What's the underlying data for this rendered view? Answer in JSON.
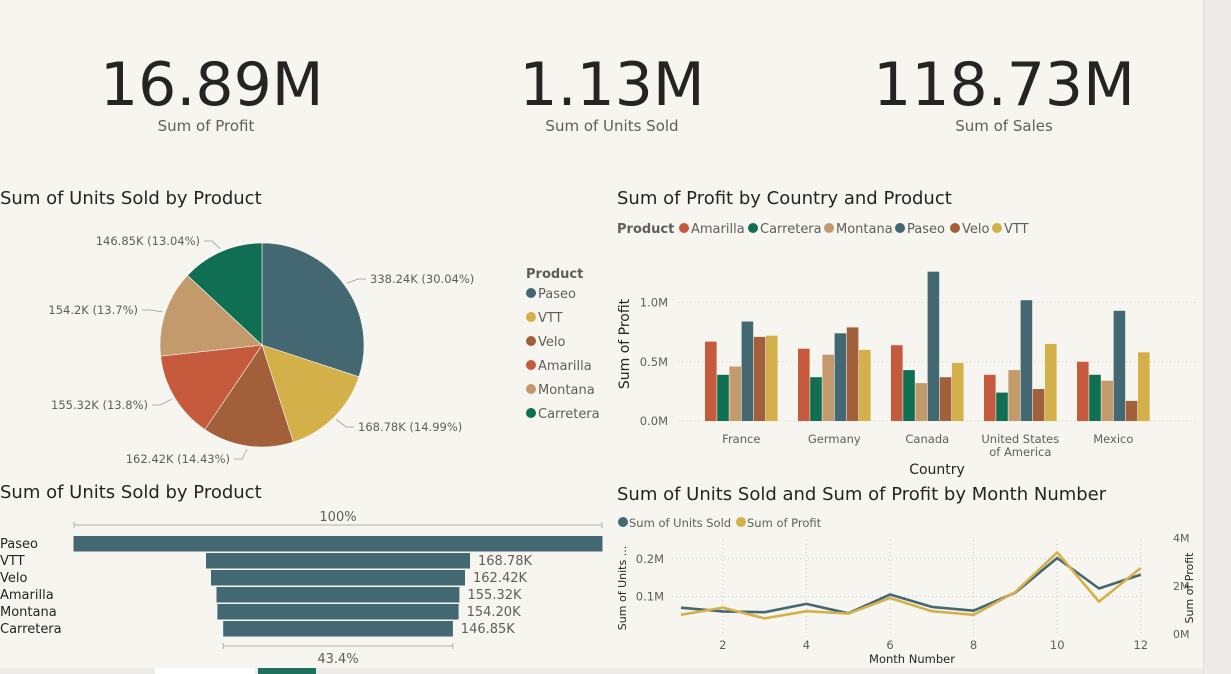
{
  "kpis": [
    {
      "value": "16.89M",
      "label": "Sum of Profit"
    },
    {
      "value": "1.13M",
      "label": "Sum of Units Sold"
    },
    {
      "value": "118.73M",
      "label": "Sum of  Sales"
    }
  ],
  "pie_title": "Sum of Units Sold by Product",
  "bar_title": "Sum of Profit by Country and Product",
  "funnel_title": "Sum of Units Sold by Product",
  "line_title": "Sum of Units Sold and Sum of Profit by Month Number",
  "colors": {
    "Paseo": "#436872",
    "VTT": "#d4b04a",
    "Velo": "#a1603a",
    "Amarilla": "#c55a3c",
    "Montana": "#c29a6b",
    "Carretera": "#106e52"
  },
  "chart_data": [
    {
      "type": "pie",
      "title": "Sum of Units Sold by Product",
      "legend_title": "Product",
      "legend_position": "right",
      "legend": [
        "Paseo",
        "VTT",
        "Velo",
        "Amarilla",
        "Montana",
        "Carretera"
      ],
      "slices": [
        {
          "name": "Paseo",
          "value": 338.24,
          "label": "338.24K (30.04%)"
        },
        {
          "name": "VTT",
          "value": 168.78,
          "label": "168.78K (14.99%)"
        },
        {
          "name": "Velo",
          "value": 162.42,
          "label": "162.42K (14.43%)"
        },
        {
          "name": "Amarilla",
          "value": 155.32,
          "label": "155.32K (13.8%)"
        },
        {
          "name": "Montana",
          "value": 154.2,
          "label": "154.2K (13.7%)"
        },
        {
          "name": "Carretera",
          "value": 146.85,
          "label": "146.85K (13.04%)"
        }
      ]
    },
    {
      "type": "bar",
      "title": "Sum of Profit by Country and Product",
      "legend_title": "Product",
      "legend_position": "top-left",
      "xlabel": "Country",
      "ylabel": "Sum of Profit",
      "ylim": [
        0,
        1.3
      ],
      "yticks": [
        "0.0M",
        "0.5M",
        "1.0M"
      ],
      "categories": [
        "France",
        "Germany",
        "Canada",
        "United States of America",
        "Mexico"
      ],
      "category_lines": [
        [
          "France"
        ],
        [
          "Germany"
        ],
        [
          "Canada"
        ],
        [
          "United States",
          "of America"
        ],
        [
          "Mexico"
        ]
      ],
      "series": [
        {
          "name": "Amarilla",
          "values": [
            0.67,
            0.61,
            0.64,
            0.39,
            0.5
          ]
        },
        {
          "name": "Carretera",
          "values": [
            0.39,
            0.37,
            0.43,
            0.24,
            0.39
          ]
        },
        {
          "name": "Montana",
          "values": [
            0.46,
            0.56,
            0.32,
            0.43,
            0.34
          ]
        },
        {
          "name": "Paseo",
          "values": [
            0.84,
            0.74,
            1.26,
            1.02,
            0.93
          ]
        },
        {
          "name": "Velo",
          "values": [
            0.71,
            0.79,
            0.37,
            0.27,
            0.17
          ]
        },
        {
          "name": "VTT",
          "values": [
            0.72,
            0.6,
            0.49,
            0.65,
            0.58
          ]
        }
      ],
      "grid": true
    },
    {
      "type": "bar",
      "orientation": "funnel",
      "title": "Sum of Units Sold by Product",
      "categories": [
        "Paseo",
        "VTT",
        "Velo",
        "Amarilla",
        "Montana",
        "Carretera"
      ],
      "values": [
        338.24,
        168.78,
        162.42,
        155.32,
        154.2,
        146.85
      ],
      "data_labels": [
        "",
        "168.78K",
        "162.42K",
        "155.32K",
        "154.20K",
        "146.85K"
      ],
      "top_label": "100%",
      "bottom_label": "43.4%"
    },
    {
      "type": "line",
      "title": "Sum of Units Sold and Sum of Profit by Month Number",
      "legend_position": "top-left",
      "xlabel": "Month Number",
      "ylabel": "Sum of Units ...",
      "y2label": "Sum of Profit",
      "x": [
        1,
        2,
        3,
        4,
        5,
        6,
        7,
        8,
        9,
        10,
        11,
        12
      ],
      "xticks": [
        "2",
        "4",
        "6",
        "8",
        "10",
        "12"
      ],
      "yticks": [
        "0.1M",
        "0.2M"
      ],
      "y2ticks": [
        "0M",
        "2M",
        "4M"
      ],
      "ylim": [
        0,
        0.25
      ],
      "y2lim": [
        0,
        4
      ],
      "series": [
        {
          "name": "Sum of Units Sold",
          "axis": "left",
          "values": [
            0.07,
            0.06,
            0.058,
            0.08,
            0.055,
            0.105,
            0.072,
            0.062,
            0.11,
            0.202,
            0.121,
            0.158
          ]
        },
        {
          "name": "Sum of Profit",
          "axis": "right",
          "values": [
            0.8,
            1.1,
            0.65,
            0.95,
            0.85,
            1.5,
            0.95,
            0.8,
            1.75,
            3.4,
            1.35,
            2.75
          ]
        }
      ],
      "grid": true
    }
  ]
}
